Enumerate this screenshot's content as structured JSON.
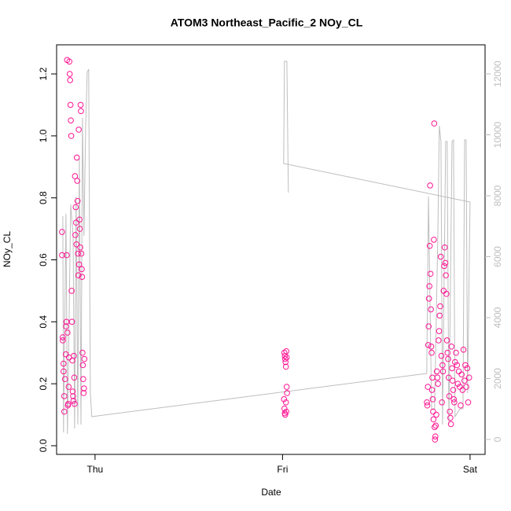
{
  "chart_data": {
    "type": "scatter",
    "title": "ATOM3 Northeast_Pacific_2 NOy_CL",
    "x_label": "Date",
    "y_label": "NOy_CL",
    "xlim": [
      -0.205,
      2.08
    ],
    "xticks": [
      {
        "value": 0,
        "label": "Thu"
      },
      {
        "value": 1,
        "label": "Fri"
      },
      {
        "value": 2,
        "label": "Sat"
      }
    ],
    "ylim": [
      -0.028,
      1.294
    ],
    "yticks": [
      {
        "value": 0,
        "label": "0.0"
      },
      {
        "value": 0.2,
        "label": "0.2"
      },
      {
        "value": 0.4,
        "label": "0.4"
      },
      {
        "value": 0.6,
        "label": "0.6"
      },
      {
        "value": 0.8,
        "label": "0.8"
      },
      {
        "value": 1,
        "label": "1.0"
      },
      {
        "value": 1.2,
        "label": "1.2"
      }
    ],
    "y2lim": [
      -490,
      12955
    ],
    "y2ticks": [
      0,
      2000,
      4000,
      6000,
      8000,
      10000,
      12000
    ],
    "y2_color": "#bebebe",
    "series": [
      {
        "type": "scatter",
        "color": "#ff1493",
        "x": [
          -0.176,
          -0.176,
          -0.172,
          -0.172,
          -0.168,
          -0.168,
          -0.164,
          -0.164,
          -0.16,
          -0.156,
          -0.155,
          -0.153,
          -0.151,
          -0.149,
          -0.147,
          -0.145,
          -0.143,
          -0.141,
          -0.139,
          -0.137,
          -0.135,
          -0.133,
          -0.131,
          -0.129,
          -0.127,
          -0.125,
          -0.123,
          -0.121,
          -0.119,
          -0.117,
          -0.115,
          -0.113,
          -0.111,
          -0.109,
          -0.107,
          -0.105,
          -0.103,
          -0.101,
          -0.099,
          -0.097,
          -0.095,
          -0.093,
          -0.091,
          -0.089,
          -0.087,
          -0.085,
          -0.083,
          -0.081,
          -0.079,
          -0.077,
          -0.075,
          -0.073,
          -0.071,
          -0.069,
          -0.067,
          -0.065,
          -0.063,
          -0.061,
          -0.059,
          -0.057,
          1.01,
          1.012,
          1.014,
          1.016,
          1.018,
          1.02,
          1.022,
          1.008,
          1.01,
          1.012,
          1.014,
          1.018,
          1.022,
          1.024,
          1.02,
          1.77,
          1.772,
          1.775,
          1.777,
          1.779,
          1.781,
          1.783,
          1.785,
          1.787,
          1.789,
          1.791,
          1.793,
          1.795,
          1.797,
          1.799,
          1.801,
          1.803,
          1.805,
          1.807,
          1.809,
          1.811,
          1.813,
          1.815,
          1.817,
          1.82,
          1.823,
          1.826,
          1.829,
          1.832,
          1.835,
          1.838,
          1.841,
          1.844,
          1.847,
          1.85,
          1.853,
          1.856,
          1.859,
          1.862,
          1.865,
          1.868,
          1.871,
          1.874,
          1.877,
          1.88,
          1.883,
          1.886,
          1.889,
          1.892,
          1.895,
          1.898,
          1.901,
          1.904,
          1.907,
          1.91,
          1.913,
          1.916,
          1.92,
          1.925,
          1.93,
          1.935,
          1.94,
          1.945,
          1.95,
          1.955,
          1.96,
          1.965,
          1.97,
          1.975,
          1.98,
          1.985,
          1.99,
          1.995
        ],
        "values": [
          0.69,
          0.615,
          0.35,
          0.34,
          0.265,
          0.24,
          0.16,
          0.11,
          0.215,
          0.295,
          0.385,
          0.4,
          0.615,
          1.245,
          0.365,
          0.13,
          0.135,
          0.19,
          0.285,
          1.24,
          1.2,
          1.18,
          1.1,
          1.05,
          1.0,
          0.5,
          0.4,
          0.275,
          0.175,
          0.16,
          0.145,
          0.29,
          0.22,
          0.135,
          0.87,
          0.68,
          0.77,
          0.72,
          0.65,
          0.93,
          0.855,
          0.79,
          0.62,
          0.55,
          1.02,
          0.585,
          0.73,
          0.7,
          0.64,
          1.1,
          1.08,
          0.62,
          0.57,
          0.545,
          0.3,
          0.26,
          0.215,
          0.17,
          0.185,
          0.28,
          0.3,
          0.29,
          0.28,
          0.27,
          0.255,
          0.305,
          0.285,
          0.15,
          0.12,
          0.105,
          0.1,
          0.14,
          0.19,
          0.17,
          0.11,
          0.14,
          0.13,
          0.19,
          0.325,
          0.385,
          0.475,
          0.515,
          0.645,
          0.84,
          0.555,
          0.44,
          0.32,
          0.3,
          0.18,
          0.22,
          0.15,
          0.11,
          0.085,
          0.665,
          1.04,
          0.06,
          0.02,
          0.03,
          0.065,
          0.1,
          0.24,
          0.22,
          0.2,
          0.34,
          0.37,
          0.42,
          0.45,
          0.61,
          0.29,
          0.14,
          0.26,
          0.24,
          0.5,
          0.58,
          0.64,
          0.59,
          0.55,
          0.49,
          0.34,
          0.3,
          0.28,
          0.22,
          0.16,
          0.11,
          0.09,
          0.07,
          0.32,
          0.25,
          0.21,
          0.18,
          0.15,
          0.14,
          0.27,
          0.3,
          0.26,
          0.2,
          0.24,
          0.19,
          0.13,
          0.23,
          0.18,
          0.31,
          0.21,
          0.26,
          0.19,
          0.25,
          0.14,
          0.22
        ]
      },
      {
        "type": "line",
        "color": "#bebebe",
        "axis": "y2",
        "x": [
          -0.172,
          -0.168,
          -0.155,
          -0.147,
          -0.138,
          -0.13,
          -0.117,
          -0.109,
          -0.101,
          -0.092,
          -0.084,
          -0.075,
          -0.067,
          -0.059,
          -0.05,
          -0.042,
          -0.034,
          -0.025,
          -0.017,
          1.769,
          1.778,
          1.795,
          1.811,
          1.828,
          1.836,
          1.845,
          1.853,
          1.87,
          1.878,
          1.887,
          1.904,
          1.912,
          1.92,
          1.946,
          1.962,
          1.971,
          1.979,
          1.987,
          2.0,
          1.006,
          1.01,
          1.023,
          1.031
        ],
        "values": [
          7329,
          232,
          7406,
          181,
          4103,
          7716,
          6684,
          361,
          7974,
          490,
          9264,
          490,
          10555,
          6684,
          10297,
          12051,
          12155,
          1523,
          748,
          2168,
          7974,
          1006,
          1006,
          6684,
          10297,
          9781,
          490,
          9781,
          9781,
          490,
          9781,
          9832,
          748,
          1006,
          1006,
          9832,
          9832,
          1523,
          7794,
          9058,
          12413,
          12413,
          8103
        ]
      }
    ]
  }
}
